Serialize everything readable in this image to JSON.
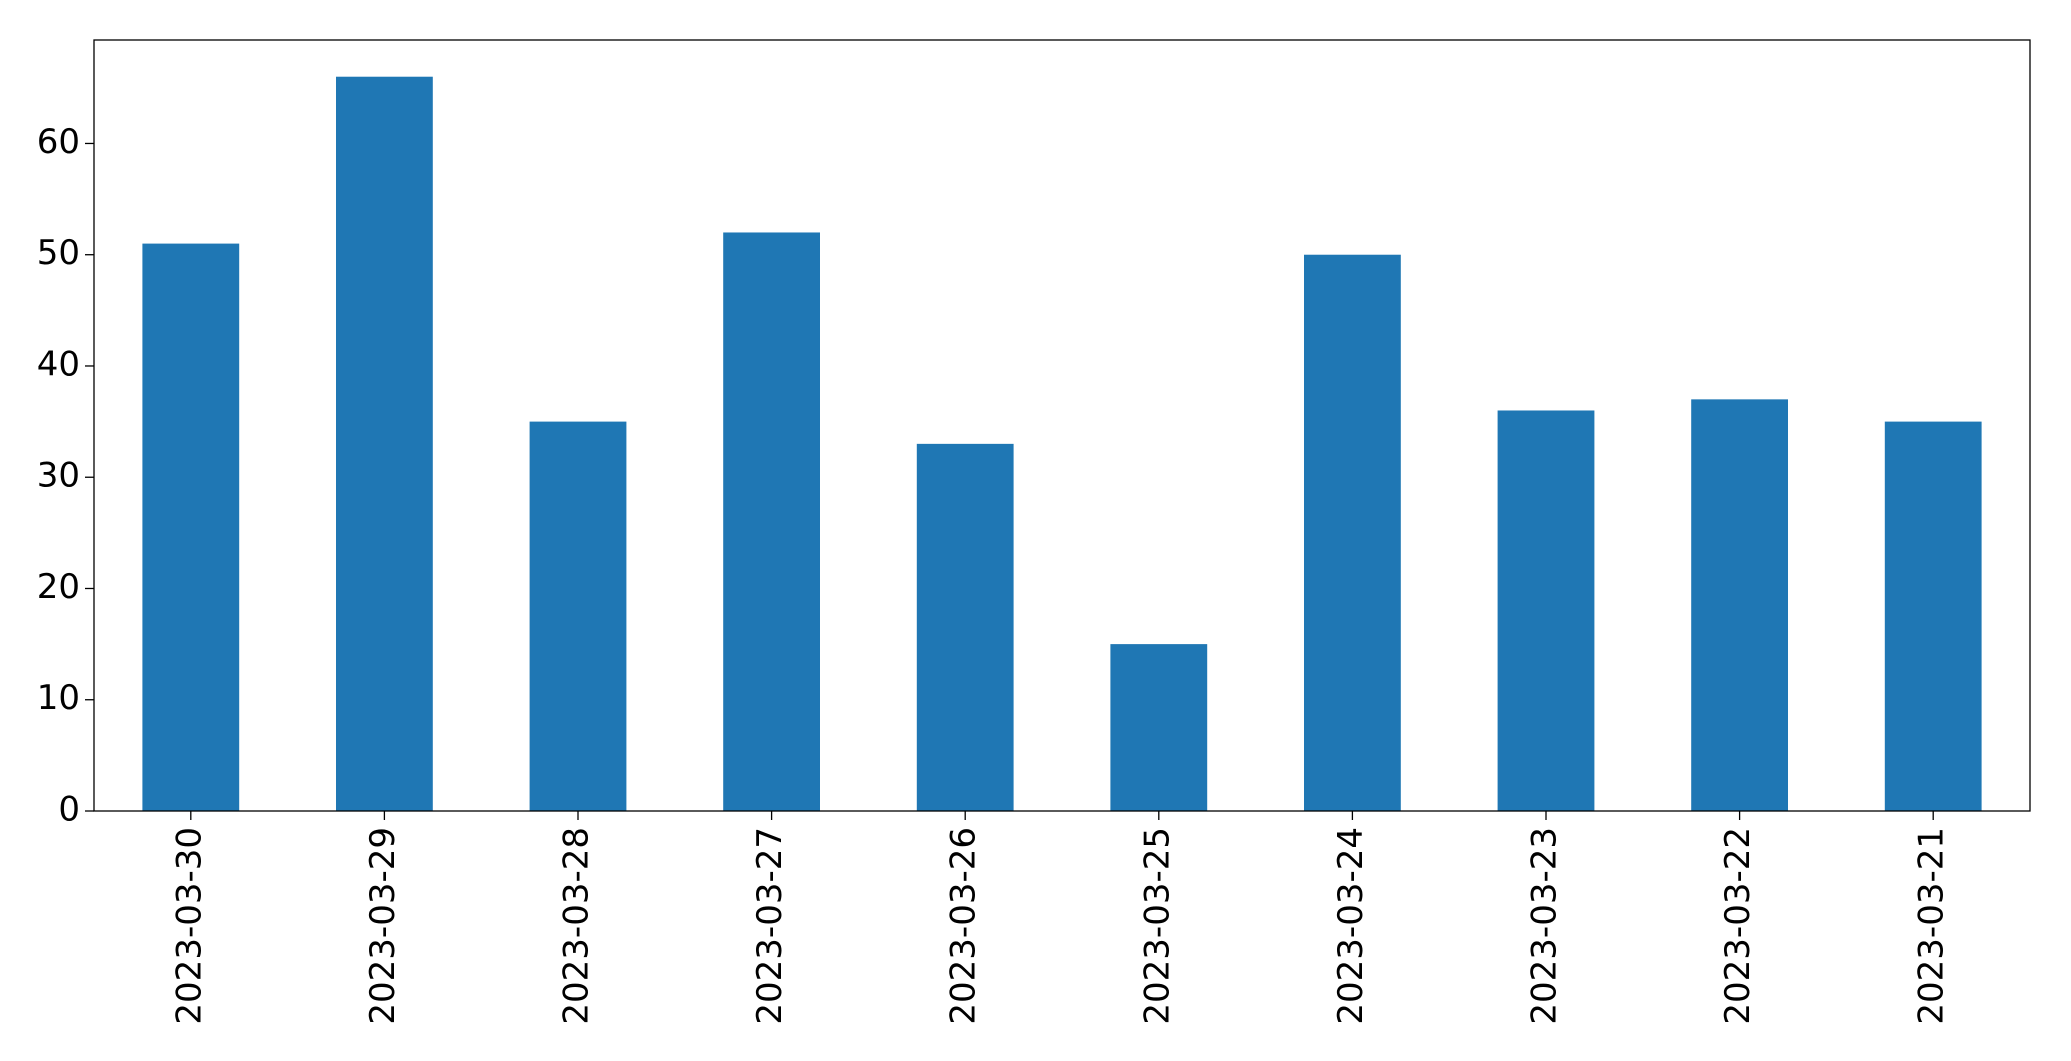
{
  "chart_data": {
    "type": "bar",
    "categories": [
      "2023-03-30",
      "2023-03-29",
      "2023-03-28",
      "2023-03-27",
      "2023-03-26",
      "2023-03-25",
      "2023-03-24",
      "2023-03-23",
      "2023-03-22",
      "2023-03-21"
    ],
    "values": [
      51,
      66,
      35,
      52,
      33,
      15,
      50,
      36,
      37,
      35
    ],
    "color": "#1f77b4",
    "ylim": [
      0,
      69.3
    ],
    "yticks": [
      0,
      10,
      20,
      30,
      40,
      50,
      60
    ],
    "grid": false
  }
}
